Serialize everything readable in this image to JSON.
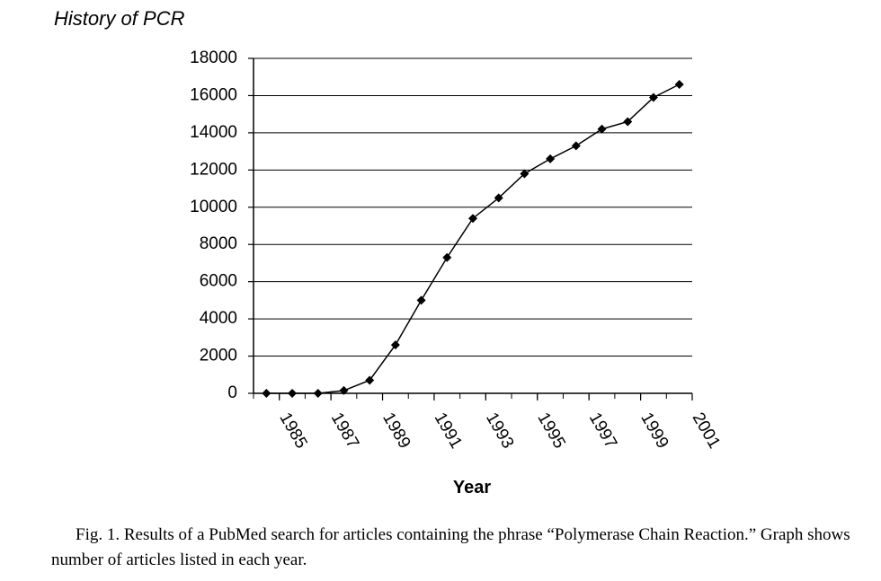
{
  "chart_data": {
    "type": "line",
    "title": "History of PCR",
    "x_label": "Year",
    "x": [
      1984.5,
      1985.5,
      1986.5,
      1987.5,
      1988.5,
      1989.5,
      1990.5,
      1991.5,
      1992.5,
      1993.5,
      1994.5,
      1995.5,
      1996.5,
      1997.5,
      1998.5,
      1999.5,
      2000.5
    ],
    "series": [
      {
        "color": "#000000",
        "values": [
          0,
          0,
          0,
          150,
          700,
          2600,
          5000,
          7300,
          9400,
          10500,
          11800,
          12600,
          13300,
          14200,
          14600,
          15900,
          16600
        ]
      }
    ],
    "xlim": [
      1984,
      2001
    ],
    "xticks": [
      1985,
      1987,
      1989,
      1991,
      1993,
      1995,
      1997,
      1999,
      2001
    ],
    "ylim": [
      0,
      18000
    ],
    "yticks": [
      0,
      2000,
      4000,
      6000,
      8000,
      10000,
      12000,
      14000,
      16000,
      18000
    ],
    "grid": true,
    "caption": "Fig. 1.  Results of a PubMed search for articles containing the phrase “Polymerase Chain Reaction.”  Graph shows number of articles listed in each year."
  }
}
